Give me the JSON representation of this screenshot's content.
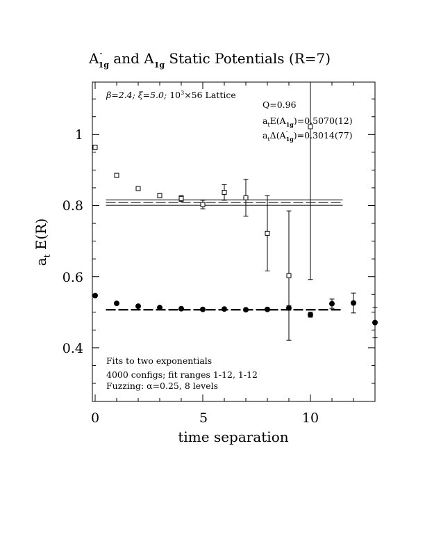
{
  "chart_data": {
    "type": "scatter",
    "title": "A″1g and A1g Static Potentials (R=7)",
    "title_parts": {
      "a": "A",
      "a_prime": "″",
      "a_sub": "1g",
      "mid": " and ",
      "b": "A",
      "b_sub": "1g",
      "tail": " Static Potentials (R=7)"
    },
    "xlabel": "time separation",
    "ylabel": "a_t E(R)",
    "ylabel_parts": {
      "a": "a",
      "a_sub": "t",
      "rest": " E(R)"
    },
    "xlim": [
      0,
      13
    ],
    "ylim": [
      0.25,
      1.15
    ],
    "xticks": [
      0,
      5,
      10
    ],
    "xtick_labels": [
      "0",
      "5",
      "10"
    ],
    "yticks": [
      0.4,
      0.6,
      0.8,
      1.0
    ],
    "ytick_labels": [
      "0.4",
      "0.6",
      "0.8",
      "1"
    ],
    "annotations": {
      "lattice": {
        "beta": "β=2.4; ",
        "xi": "ξ=5.0; ",
        "lat_a": "10",
        "lat_sup": "3",
        "lat_b": "×56 Lattice"
      },
      "q": "Q=0.96",
      "energy": {
        "a": "a",
        "a_sub": "t",
        "e": "E(A",
        "e_sub": "1g",
        "val": ")=0.5070(12)"
      },
      "gap": {
        "a": "a",
        "a_sub": "t",
        "d": "Δ(A",
        "d_prime": "″",
        "d_sub": "1g",
        "val": ")=0.3014(77)"
      },
      "fits": "Fits to two exponentials",
      "configs": "4000 configs; fit ranges 1-12, 1-12",
      "fuzzing": "Fuzzing: α=0.25, 8 levels"
    },
    "series": [
      {
        "name": "A″1g",
        "marker": "open-square",
        "points": [
          {
            "x": 0,
            "y": 0.964,
            "err": 0.006
          },
          {
            "x": 1,
            "y": 0.885,
            "err": 0.005
          },
          {
            "x": 2,
            "y": 0.848,
            "err": 0.005
          },
          {
            "x": 3,
            "y": 0.828,
            "err": 0.006
          },
          {
            "x": 4,
            "y": 0.82,
            "err": 0.008
          },
          {
            "x": 5,
            "y": 0.803,
            "err": 0.012
          },
          {
            "x": 6,
            "y": 0.837,
            "err": 0.022
          },
          {
            "x": 7,
            "y": 0.822,
            "err": 0.052
          },
          {
            "x": 8,
            "y": 0.722,
            "err": 0.106
          },
          {
            "x": 9,
            "y": 0.603,
            "err": 0.182
          },
          {
            "x": 10,
            "y": 1.022,
            "err": 0.43
          }
        ],
        "fit": {
          "value": 0.8084,
          "err": 0.0077,
          "x_range": [
            0.5,
            11.5
          ]
        }
      },
      {
        "name": "A1g",
        "marker": "filled-circle",
        "points": [
          {
            "x": 0,
            "y": 0.547,
            "err": 0.003
          },
          {
            "x": 1,
            "y": 0.525,
            "err": 0.003
          },
          {
            "x": 2,
            "y": 0.517,
            "err": 0.003
          },
          {
            "x": 3,
            "y": 0.513,
            "err": 0.003
          },
          {
            "x": 4,
            "y": 0.51,
            "err": 0.003
          },
          {
            "x": 5,
            "y": 0.508,
            "err": 0.003
          },
          {
            "x": 6,
            "y": 0.509,
            "err": 0.003
          },
          {
            "x": 7,
            "y": 0.507,
            "err": 0.003
          },
          {
            "x": 8,
            "y": 0.508,
            "err": 0.004
          },
          {
            "x": 9,
            "y": 0.512,
            "err": 0.006
          },
          {
            "x": 10,
            "y": 0.493,
            "err": 0.007
          },
          {
            "x": 11,
            "y": 0.524,
            "err": 0.013
          },
          {
            "x": 12,
            "y": 0.526,
            "err": 0.028
          },
          {
            "x": 13,
            "y": 0.471,
            "err": 0.043
          }
        ],
        "fit": {
          "value": 0.507,
          "err": 0.0012,
          "x_range": [
            0.5,
            11.5
          ]
        }
      }
    ]
  }
}
